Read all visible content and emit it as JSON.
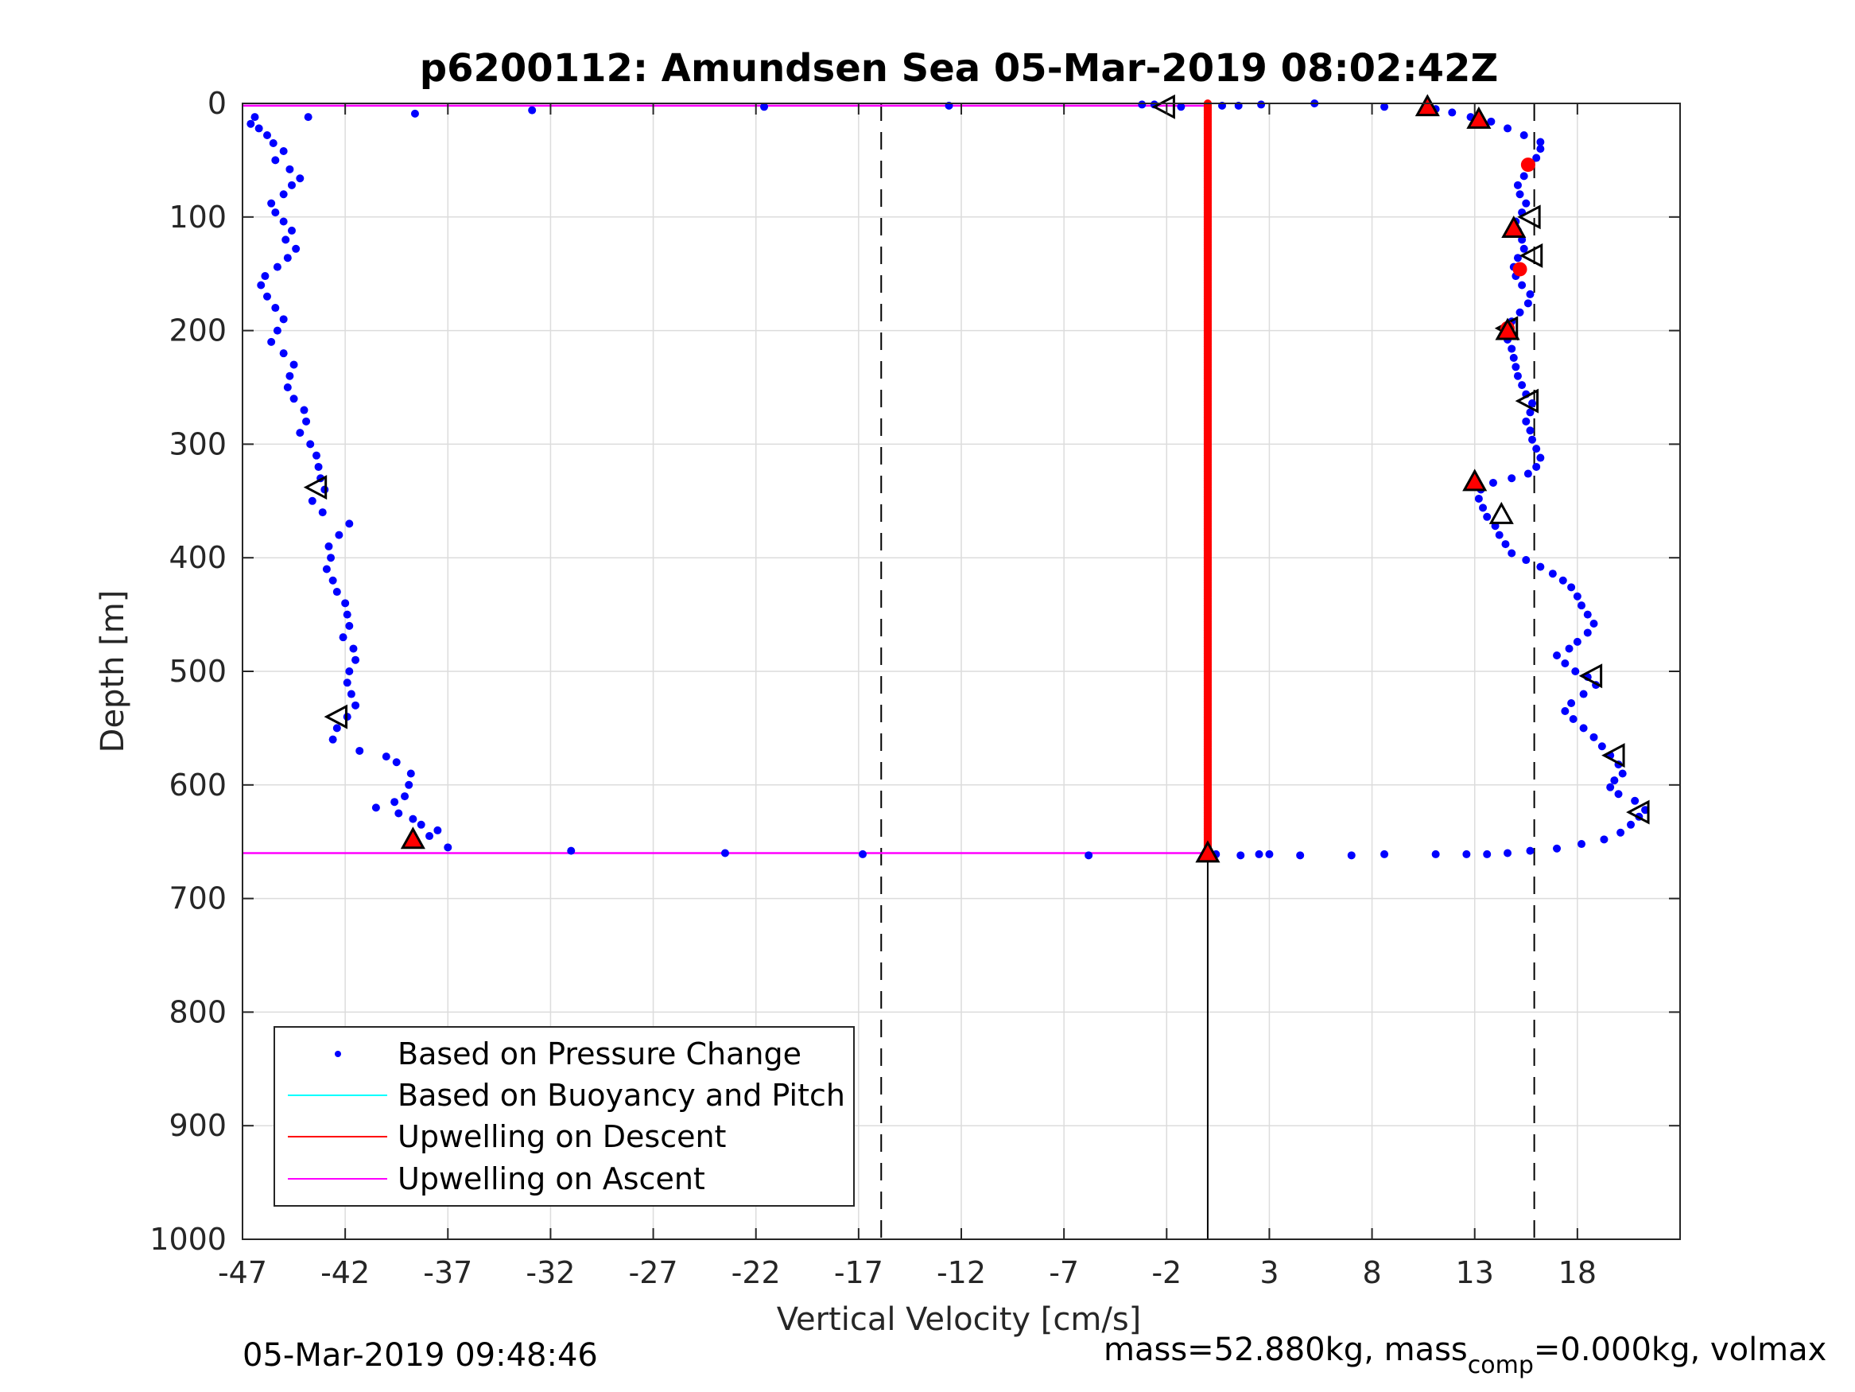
{
  "chart_data": {
    "type": "scatter",
    "title": "p6200112: Amundsen Sea 05-Mar-2019 08:02:42Z",
    "xlabel": "Vertical Velocity [cm/s]",
    "ylabel": "Depth [m]",
    "xlim": [
      -47,
      23
    ],
    "ylim": [
      0,
      1000
    ],
    "y_reversed": true,
    "grid": true,
    "xticks": [
      -47,
      -42,
      -37,
      -32,
      -27,
      -22,
      -17,
      -12,
      -7,
      -2,
      3,
      8,
      13,
      18
    ],
    "yticks": [
      0,
      100,
      200,
      300,
      400,
      500,
      600,
      700,
      800,
      900,
      1000
    ],
    "legend": {
      "placement": "bottom-left",
      "entries": [
        {
          "label": "Based on Pressure Change",
          "color": "#0000ff",
          "style": "dot"
        },
        {
          "label": "Based on Buoyancy and Pitch",
          "color": "#00ffff",
          "style": "line"
        },
        {
          "label": "Upwelling on Descent",
          "color": "#ff0000",
          "style": "line"
        },
        {
          "label": "Upwelling on Ascent",
          "color": "#ff00ff",
          "style": "line"
        }
      ]
    },
    "reference_lines": [
      {
        "x": -15.9,
        "style": "dashed",
        "color": "#000000"
      },
      {
        "x": 15.9,
        "style": "dashed",
        "color": "#000000"
      },
      {
        "x": 0,
        "style": "solid",
        "color": "#000000",
        "y_from": 660,
        "y_to": 1000
      }
    ],
    "pressure_change_descent": [
      [
        -46.4,
        12
      ],
      [
        -46.6,
        18
      ],
      [
        -46.2,
        22
      ],
      [
        -45.8,
        28
      ],
      [
        -45.5,
        35
      ],
      [
        -45.0,
        42
      ],
      [
        -45.4,
        50
      ],
      [
        -44.7,
        58
      ],
      [
        -44.2,
        66
      ],
      [
        -44.6,
        72
      ],
      [
        -45.0,
        80
      ],
      [
        -45.6,
        88
      ],
      [
        -45.4,
        96
      ],
      [
        -45.0,
        104
      ],
      [
        -44.6,
        112
      ],
      [
        -44.9,
        120
      ],
      [
        -44.4,
        128
      ],
      [
        -44.8,
        136
      ],
      [
        -45.3,
        144
      ],
      [
        -45.9,
        152
      ],
      [
        -46.1,
        160
      ],
      [
        -45.8,
        170
      ],
      [
        -45.4,
        180
      ],
      [
        -45.0,
        190
      ],
      [
        -45.3,
        200
      ],
      [
        -45.6,
        210
      ],
      [
        -45.0,
        220
      ],
      [
        -44.5,
        230
      ],
      [
        -44.7,
        240
      ],
      [
        -44.8,
        250
      ],
      [
        -44.5,
        260
      ],
      [
        -44.0,
        270
      ],
      [
        -43.9,
        280
      ],
      [
        -44.2,
        290
      ],
      [
        -43.7,
        300
      ],
      [
        -43.4,
        310
      ],
      [
        -43.3,
        320
      ],
      [
        -43.2,
        330
      ],
      [
        -43.0,
        340
      ],
      [
        -43.6,
        350
      ],
      [
        -43.1,
        360
      ],
      [
        -41.8,
        370
      ],
      [
        -42.3,
        380
      ],
      [
        -42.8,
        390
      ],
      [
        -42.7,
        400
      ],
      [
        -42.9,
        410
      ],
      [
        -42.6,
        420
      ],
      [
        -42.4,
        430
      ],
      [
        -42.0,
        440
      ],
      [
        -41.9,
        450
      ],
      [
        -41.8,
        460
      ],
      [
        -42.1,
        470
      ],
      [
        -41.6,
        480
      ],
      [
        -41.5,
        490
      ],
      [
        -41.8,
        500
      ],
      [
        -41.9,
        510
      ],
      [
        -41.7,
        520
      ],
      [
        -41.5,
        530
      ],
      [
        -41.9,
        540
      ],
      [
        -42.4,
        550
      ],
      [
        -42.6,
        560
      ],
      [
        -41.3,
        570
      ],
      [
        -40.0,
        575
      ],
      [
        -39.5,
        580
      ],
      [
        -38.8,
        590
      ],
      [
        -38.9,
        600
      ],
      [
        -39.1,
        610
      ],
      [
        -39.6,
        615
      ],
      [
        -40.5,
        620
      ],
      [
        -39.4,
        625
      ],
      [
        -38.7,
        630
      ],
      [
        -38.3,
        635
      ],
      [
        -37.5,
        640
      ],
      [
        -37.9,
        645
      ],
      [
        -37.0,
        655
      ]
    ],
    "pressure_change_bottom": [
      [
        -31.0,
        658
      ],
      [
        -23.5,
        660
      ],
      [
        -16.8,
        661
      ],
      [
        -5.8,
        662
      ],
      [
        0.4,
        661
      ],
      [
        1.6,
        662
      ],
      [
        2.5,
        661
      ],
      [
        3.0,
        661
      ],
      [
        4.5,
        662
      ],
      [
        7.0,
        662
      ],
      [
        8.6,
        661
      ],
      [
        11.1,
        661
      ],
      [
        12.6,
        661
      ],
      [
        13.6,
        661
      ],
      [
        14.6,
        660
      ],
      [
        15.7,
        658
      ],
      [
        17.0,
        656
      ],
      [
        18.2,
        652
      ],
      [
        19.3,
        648
      ],
      [
        20.1,
        642
      ],
      [
        20.6,
        635
      ],
      [
        21.0,
        628
      ],
      [
        21.3,
        622
      ]
    ],
    "pressure_change_ascent": [
      [
        20.8,
        614
      ],
      [
        20.0,
        608
      ],
      [
        19.6,
        602
      ],
      [
        19.8,
        596
      ],
      [
        20.2,
        590
      ],
      [
        20.0,
        582
      ],
      [
        19.6,
        574
      ],
      [
        19.2,
        566
      ],
      [
        18.8,
        558
      ],
      [
        18.3,
        550
      ],
      [
        17.8,
        542
      ],
      [
        17.4,
        535
      ],
      [
        17.7,
        528
      ],
      [
        18.3,
        520
      ],
      [
        18.9,
        512
      ],
      [
        18.5,
        505
      ],
      [
        17.9,
        500
      ],
      [
        17.4,
        493
      ],
      [
        17.0,
        486
      ],
      [
        17.6,
        480
      ],
      [
        18.0,
        474
      ],
      [
        18.5,
        466
      ],
      [
        18.8,
        458
      ],
      [
        18.5,
        450
      ],
      [
        18.2,
        442
      ],
      [
        18.0,
        434
      ],
      [
        17.7,
        426
      ],
      [
        17.3,
        420
      ],
      [
        16.8,
        414
      ],
      [
        16.2,
        408
      ],
      [
        15.5,
        402
      ],
      [
        14.8,
        396
      ],
      [
        14.5,
        388
      ],
      [
        14.2,
        380
      ],
      [
        14.0,
        372
      ],
      [
        13.6,
        364
      ],
      [
        13.4,
        356
      ],
      [
        13.2,
        348
      ],
      [
        13.3,
        340
      ],
      [
        13.9,
        334
      ],
      [
        14.8,
        330
      ],
      [
        15.6,
        326
      ],
      [
        16.0,
        320
      ],
      [
        16.2,
        312
      ],
      [
        16.0,
        304
      ],
      [
        15.8,
        296
      ],
      [
        15.7,
        288
      ],
      [
        15.5,
        280
      ],
      [
        15.7,
        272
      ],
      [
        15.8,
        264
      ],
      [
        15.5,
        256
      ],
      [
        15.3,
        248
      ],
      [
        15.1,
        240
      ],
      [
        15.0,
        232
      ],
      [
        14.9,
        224
      ],
      [
        14.8,
        216
      ],
      [
        14.6,
        208
      ],
      [
        14.5,
        200
      ],
      [
        14.8,
        192
      ],
      [
        15.2,
        184
      ],
      [
        15.6,
        176
      ],
      [
        15.7,
        168
      ],
      [
        15.3,
        160
      ],
      [
        15.0,
        152
      ],
      [
        14.9,
        144
      ],
      [
        15.1,
        136
      ],
      [
        15.4,
        128
      ],
      [
        15.3,
        120
      ],
      [
        15.1,
        112
      ],
      [
        15.0,
        104
      ],
      [
        15.3,
        96
      ],
      [
        15.5,
        88
      ],
      [
        15.2,
        80
      ],
      [
        15.1,
        72
      ],
      [
        15.4,
        64
      ],
      [
        15.7,
        56
      ],
      [
        16.0,
        48
      ],
      [
        16.2,
        40
      ],
      [
        16.2,
        34
      ],
      [
        15.4,
        28
      ],
      [
        14.6,
        22
      ],
      [
        13.8,
        16
      ],
      [
        12.8,
        12
      ],
      [
        11.9,
        8
      ],
      [
        11.1,
        5
      ],
      [
        8.6,
        3
      ],
      [
        5.2,
        0
      ],
      [
        2.6,
        1
      ],
      [
        1.5,
        2
      ],
      [
        0.7,
        2
      ],
      [
        -1.3,
        3
      ],
      [
        -2.6,
        1
      ],
      [
        -3.2,
        1
      ],
      [
        -12.6,
        2
      ],
      [
        -21.6,
        3
      ],
      [
        -32.9,
        6
      ],
      [
        -38.6,
        9
      ],
      [
        -43.8,
        12
      ]
    ],
    "upwelling_descent": {
      "x": 0,
      "y_from": 0,
      "y_to": 660,
      "color": "#ff0000"
    },
    "upwelling_ascent_lines": [
      {
        "y": 2,
        "x_from": -47,
        "x_to": 0,
        "color": "#ff00ff"
      },
      {
        "y": 660,
        "x_from": -47,
        "x_to": 0,
        "color": "#ff00ff"
      }
    ],
    "filled_up_triangles": [
      [
        -38.7,
        648
      ],
      [
        0,
        660
      ],
      [
        10.7,
        3
      ],
      [
        13.2,
        14
      ],
      [
        14.9,
        110
      ],
      [
        13.0,
        333
      ],
      [
        14.6,
        200
      ]
    ],
    "open_up_triangles": [
      [
        14.3,
        362
      ]
    ],
    "open_left_triangles": [
      [
        -43.4,
        338
      ],
      [
        -42.4,
        540
      ],
      [
        -2.1,
        3
      ],
      [
        15.7,
        100
      ],
      [
        15.8,
        134
      ],
      [
        15.6,
        262
      ],
      [
        14.6,
        198
      ],
      [
        18.7,
        504
      ],
      [
        19.8,
        574
      ],
      [
        21.0,
        624
      ]
    ],
    "red_circles": [
      [
        15.6,
        54
      ],
      [
        15.2,
        146
      ],
      [
        14.6,
        198
      ]
    ]
  },
  "footer": {
    "timestamp": "05-Mar-2019 09:48:46",
    "mass_part1": "mass=52.880kg, mass",
    "mass_sub": "comp",
    "mass_part2": "=0.000kg, volmax"
  }
}
